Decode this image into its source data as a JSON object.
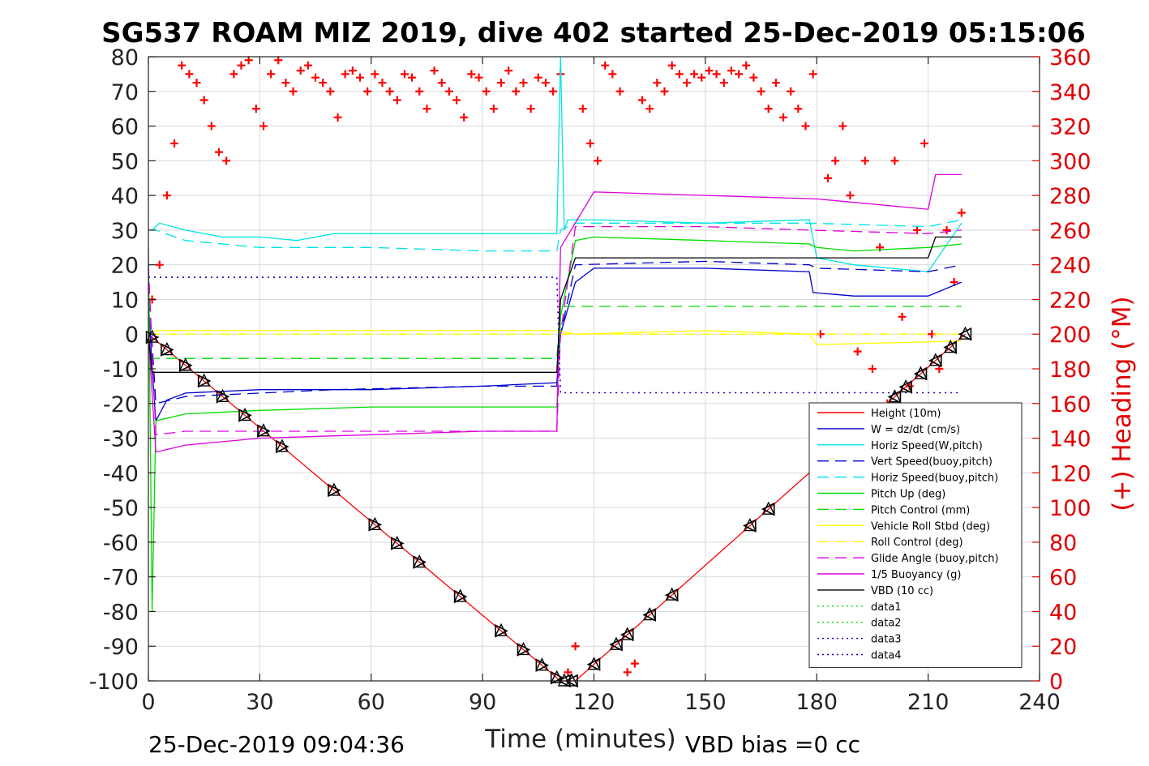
{
  "chart_data": {
    "type": "line",
    "title": "SG537 ROAM MIZ 2019, dive 402 started 25-Dec-2019 05:15:06",
    "xlabel": "Time (minutes)",
    "ylabel": "",
    "y2label": "(+) Heading (°M)",
    "xlim": [
      0,
      240
    ],
    "ylim": [
      -100,
      80
    ],
    "y2lim": [
      0,
      360
    ],
    "xticks": [
      "0",
      "30",
      "60",
      "90",
      "120",
      "150",
      "180",
      "210",
      "240"
    ],
    "yticks": [
      "80",
      "70",
      "60",
      "50",
      "40",
      "30",
      "20",
      "10",
      "0",
      "-10",
      "-20",
      "-30",
      "-40",
      "-50",
      "-60",
      "-70",
      "-80",
      "-90",
      "-100"
    ],
    "y2ticks": [
      "360",
      "340",
      "320",
      "300",
      "280",
      "260",
      "240",
      "220",
      "200",
      "180",
      "160",
      "140",
      "120",
      "100",
      "80",
      "60",
      "40",
      "20",
      "0"
    ],
    "grid": true,
    "legend_position": "bottom-right",
    "series": [
      {
        "name": "Height (10m)",
        "color": "#ff0000",
        "style": "solid",
        "x": [
          0,
          111,
          113,
          115,
          220
        ],
        "y": [
          0,
          -100,
          -100,
          -100,
          0
        ]
      },
      {
        "name": "W = dz/dt (cm/s)",
        "color": "#0000cc",
        "style": "solid",
        "x": [
          0,
          1,
          2,
          5,
          10,
          30,
          60,
          90,
          110,
          111,
          115,
          120,
          150,
          178,
          179,
          190,
          210,
          219
        ],
        "y": [
          10,
          -10,
          -25,
          -19,
          -17,
          -16,
          -16,
          -15,
          -14,
          0,
          15,
          19,
          19,
          18,
          12,
          11,
          11,
          15
        ]
      },
      {
        "name": "Horiz Speed(W,pitch)",
        "color": "#00e5e5",
        "style": "solid",
        "x": [
          0,
          1,
          3,
          10,
          20,
          30,
          40,
          50,
          60,
          90,
          110,
          111,
          112,
          113,
          120,
          150,
          178,
          180,
          190,
          210,
          219
        ],
        "y": [
          30,
          30,
          32,
          30,
          28,
          28,
          27,
          29,
          29,
          29,
          29,
          80,
          30,
          33,
          33,
          32,
          33,
          22,
          20,
          18,
          32
        ]
      },
      {
        "name": "Vert Speed(buoy,pitch)",
        "color": "#0000cc",
        "style": "dashed",
        "x": [
          0,
          2,
          10,
          50,
          90,
          110,
          111,
          115,
          150,
          178,
          180,
          210,
          219
        ],
        "y": [
          15,
          -20,
          -18,
          -16,
          -15,
          -15,
          0,
          20,
          21,
          20,
          19,
          18,
          20
        ]
      },
      {
        "name": "Horiz Speed(buoy,pitch)",
        "color": "#00e5e5",
        "style": "dashed",
        "x": [
          0,
          2,
          10,
          30,
          60,
          90,
          110,
          111,
          115,
          150,
          178,
          210,
          219
        ],
        "y": [
          30,
          30,
          27,
          25,
          25,
          24,
          24,
          30,
          32,
          32,
          32,
          31,
          33
        ]
      },
      {
        "name": "Pitch Up (deg)",
        "color": "#00dd00",
        "style": "solid",
        "x": [
          0,
          1,
          2,
          10,
          30,
          60,
          90,
          110,
          111,
          115,
          120,
          150,
          178,
          180,
          190,
          210,
          219
        ],
        "y": [
          25,
          -80,
          -25,
          -23,
          -22,
          -21,
          -21,
          -21,
          5,
          27,
          28,
          27,
          26,
          25,
          24,
          25,
          26
        ]
      },
      {
        "name": "Pitch Control (mm)",
        "color": "#00dd00",
        "style": "dashed",
        "x": [
          0,
          2,
          110,
          111,
          178,
          190,
          219
        ],
        "y": [
          -7,
          -7,
          -7,
          8,
          8,
          8,
          8
        ]
      },
      {
        "name": "Vehicle Roll Stbd (deg)",
        "color": "#ffff00",
        "style": "solid",
        "x": [
          0,
          2,
          10,
          30,
          60,
          90,
          110,
          115,
          150,
          178,
          180,
          219
        ],
        "y": [
          0,
          1,
          1,
          1,
          1,
          1,
          1,
          0,
          1,
          0,
          -3,
          -2
        ]
      },
      {
        "name": "Roll Control (deg)",
        "color": "#ffff00",
        "style": "dashed",
        "x": [
          0,
          219
        ],
        "y": [
          0,
          0
        ]
      },
      {
        "name": "Glide Angle (buoy,pitch)",
        "color": "#dd00dd",
        "style": "dashed",
        "x": [
          0,
          2,
          10,
          50,
          90,
          110,
          111,
          115,
          150,
          178,
          210,
          219
        ],
        "y": [
          20,
          -29,
          -28,
          -28,
          -28,
          -28,
          0,
          31,
          31,
          30,
          29,
          30
        ]
      },
      {
        "name": "1/5 Buoyancy (g)",
        "color": "#dd00dd",
        "style": "solid",
        "x": [
          0,
          2,
          10,
          30,
          60,
          90,
          110,
          111,
          120,
          150,
          180,
          210,
          212,
          219
        ],
        "y": [
          0,
          -34,
          -32,
          -30,
          -29,
          -28,
          -28,
          25,
          41,
          40,
          39,
          36,
          46,
          46
        ]
      },
      {
        "name": "VBD (10 cc)",
        "color": "#000000",
        "style": "solid",
        "x": [
          0,
          1,
          2,
          110,
          111,
          115,
          120,
          210,
          212,
          219
        ],
        "y": [
          0,
          -11,
          -11,
          -11,
          10,
          22,
          22,
          22,
          28,
          28
        ]
      },
      {
        "name": "data1",
        "color": "#00dd00",
        "style": "dotted",
        "x": [],
        "y": []
      },
      {
        "name": "data2",
        "color": "#00dd00",
        "style": "dotted",
        "x": [],
        "y": []
      },
      {
        "name": "data3",
        "color": "#0000cc",
        "style": "dotted",
        "x": [
          0,
          110,
          111,
          219
        ],
        "y": [
          16.4,
          16.4,
          -16.9,
          -16.9
        ]
      },
      {
        "name": "data4",
        "color": "#0000cc",
        "style": "dotted",
        "x": [],
        "y": []
      }
    ],
    "heading_points_deg": {
      "color": "#ff0000",
      "marker": "+",
      "x": [
        1,
        3,
        5,
        7,
        9,
        11,
        13,
        15,
        17,
        19,
        21,
        23,
        25,
        27,
        29,
        31,
        33,
        35,
        37,
        39,
        41,
        43,
        45,
        47,
        49,
        51,
        53,
        55,
        57,
        59,
        61,
        63,
        65,
        67,
        69,
        71,
        73,
        75,
        77,
        79,
        81,
        83,
        85,
        87,
        89,
        91,
        93,
        95,
        97,
        99,
        101,
        103,
        105,
        107,
        109,
        111,
        113,
        115,
        117,
        119,
        121,
        123,
        125,
        127,
        129,
        131,
        133,
        135,
        137,
        139,
        141,
        143,
        145,
        147,
        149,
        151,
        153,
        155,
        157,
        159,
        161,
        163,
        165,
        167,
        169,
        171,
        173,
        175,
        177,
        179,
        181,
        183,
        185,
        187,
        189,
        191,
        193,
        195,
        197,
        199,
        201,
        203,
        205,
        207,
        209,
        211,
        213,
        215,
        217,
        219
      ],
      "y": [
        220,
        240,
        280,
        310,
        355,
        350,
        345,
        335,
        320,
        305,
        300,
        350,
        355,
        358,
        330,
        320,
        350,
        358,
        345,
        340,
        352,
        355,
        348,
        345,
        340,
        325,
        350,
        352,
        348,
        340,
        350,
        345,
        340,
        335,
        350,
        348,
        340,
        330,
        352,
        345,
        340,
        335,
        325,
        350,
        348,
        340,
        330,
        345,
        352,
        340,
        345,
        330,
        348,
        345,
        340,
        350,
        5,
        20,
        330,
        310,
        300,
        355,
        350,
        340,
        5,
        10,
        335,
        330,
        345,
        340,
        355,
        350,
        345,
        350,
        348,
        352,
        350,
        345,
        352,
        350,
        355,
        348,
        340,
        330,
        345,
        325,
        340,
        330,
        320,
        350,
        200,
        290,
        300,
        320,
        280,
        190,
        300,
        180,
        250,
        160,
        300,
        210,
        170,
        260,
        310,
        200,
        180,
        260,
        230,
        270
      ]
    },
    "triangle_marker_minutes": [
      1,
      5,
      10,
      15,
      20,
      26,
      31,
      36,
      50,
      61,
      67,
      73,
      84,
      95,
      101,
      106,
      110,
      112,
      114,
      120,
      126,
      129,
      135,
      141,
      162,
      167,
      196,
      201,
      204,
      208,
      212,
      216,
      220
    ]
  },
  "footer": {
    "timestamp": "25-Dec-2019 09:04:36",
    "vbd_bias": "VBD bias =0 cc"
  }
}
